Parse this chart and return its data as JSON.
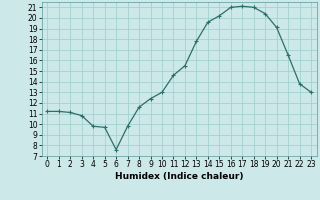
{
  "x": [
    0,
    1,
    2,
    3,
    4,
    5,
    6,
    7,
    8,
    9,
    10,
    11,
    12,
    13,
    14,
    15,
    16,
    17,
    18,
    19,
    20,
    21,
    22,
    23
  ],
  "y": [
    11.2,
    11.2,
    11.1,
    10.8,
    9.8,
    9.7,
    7.6,
    9.8,
    11.6,
    12.4,
    13.0,
    14.6,
    15.5,
    17.8,
    19.6,
    20.2,
    21.0,
    21.1,
    21.0,
    20.4,
    19.1,
    16.5,
    13.8,
    13.0
  ],
  "xlabel": "Humidex (Indice chaleur)",
  "xlim": [
    -0.5,
    23.5
  ],
  "ylim": [
    7,
    21.5
  ],
  "yticks": [
    7,
    8,
    9,
    10,
    11,
    12,
    13,
    14,
    15,
    16,
    17,
    18,
    19,
    20,
    21
  ],
  "xtick_labels": [
    "0",
    "1",
    "2",
    "3",
    "4",
    "5",
    "6",
    "7",
    "8",
    "9",
    "10",
    "11",
    "12",
    "13",
    "14",
    "15",
    "16",
    "17",
    "18",
    "19",
    "20",
    "21",
    "22",
    "23"
  ],
  "line_color": "#2e6e6a",
  "marker": "+",
  "marker_size": 3,
  "marker_linewidth": 0.8,
  "line_width": 0.9,
  "bg_color": "#cce8e8",
  "grid_color": "#9ecece",
  "xlabel_fontsize": 6.5,
  "tick_fontsize": 5.5
}
